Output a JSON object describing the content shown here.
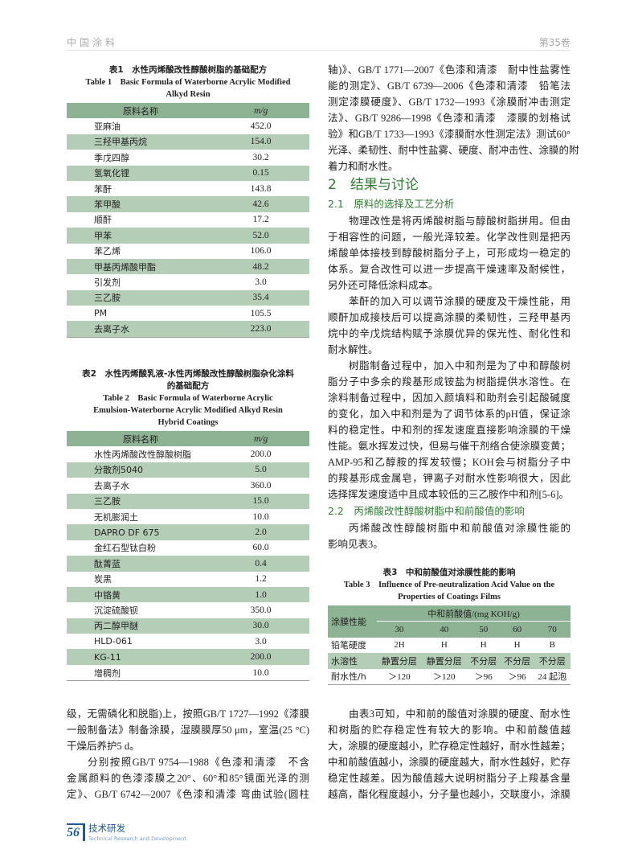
{
  "header": {
    "journal": "中国涂料",
    "volume": "第35卷"
  },
  "table1": {
    "caption_cn": "表1　水性丙烯酸改性醇酸树脂的基础配方",
    "caption_en": [
      "Table 1　Basic Formula of Waterborne Acrylic Modified",
      "Alkyd Resin"
    ],
    "headers": [
      "原料名称",
      "m/g"
    ],
    "rows": [
      [
        "亚麻油",
        "452.0"
      ],
      [
        "三羟甲基丙烷",
        "154.0"
      ],
      [
        "季戊四醇",
        "30.2"
      ],
      [
        "氢氧化锂",
        "0.15"
      ],
      [
        "苯酐",
        "143.8"
      ],
      [
        "苯甲酸",
        "42.6"
      ],
      [
        "顺酐",
        "17.2"
      ],
      [
        "甲苯",
        "52.0"
      ],
      [
        "苯乙烯",
        "106.0"
      ],
      [
        "甲基丙烯酸甲酯",
        "48.2"
      ],
      [
        "引发剂",
        "3.0"
      ],
      [
        "三乙胺",
        "35.4"
      ],
      [
        "PM",
        "105.5"
      ],
      [
        "去离子水",
        "223.0"
      ]
    ]
  },
  "table2": {
    "caption_cn": [
      "表2　水性丙烯酸乳液-水性丙烯酸改性醇酸树脂杂化涂料",
      "的基础配方"
    ],
    "caption_en": [
      "Table 2　Basic Formula of Waterborne Acrylic",
      "Emulsion-Waterborne Acrylic Modified Alkyd Resin",
      "Hybrid Coatings"
    ],
    "headers": [
      "原料名称",
      "m/g"
    ],
    "rows": [
      [
        "水性丙烯酸改性醇酸树脂",
        "200.0"
      ],
      [
        "分散剂5040",
        "5.0"
      ],
      [
        "去离子水",
        "360.0"
      ],
      [
        "三乙胺",
        "15.0"
      ],
      [
        "无机膨润土",
        "10.0"
      ],
      [
        "DAPRO DF 675",
        "2.0"
      ],
      [
        "金红石型钛白粉",
        "60.0"
      ],
      [
        "酞菁蓝",
        "0.4"
      ],
      [
        "炭黑",
        "1.2"
      ],
      [
        "中铬黄",
        "1.0"
      ],
      [
        "沉淀硫酸钡",
        "350.0"
      ],
      [
        "丙二醇甲醚",
        "30.0"
      ],
      [
        "HLD-061",
        "3.0"
      ],
      [
        "KG-11",
        "200.0"
      ],
      [
        "增稠剂",
        "10.0"
      ]
    ]
  },
  "left_text": [
    {
      "indent": false,
      "lines": [
        "级，无需磷化和脱脂)上，按照GB/T 1727—1992《漆膜",
        "一般制备法》制备涂膜，湿膜膜厚50 μm，室温(25 °C)",
        "干燥后养护5 d。"
      ]
    },
    {
      "indent": true,
      "lines": [
        "分别按照GB/T 9754—1988《色漆和清漆　不含",
        "金属颜料的色漆漆膜之20°、60°和85°镜面光泽的测",
        "定》、GB/T 6742—2007《色漆和清漆 弯曲试验(圆柱"
      ],
      "cont": true
    }
  ],
  "right_text_1": {
    "indent": false,
    "lines": [
      "轴)》、GB/T 1771—2007《色漆和清漆　耐中性盐雾性",
      "能的测定》、GB/T 6739—2006《色漆和清漆　铅笔法",
      "测定漆膜硬度》、GB/T 1732—1993《涂膜耐冲击测定",
      "法》、GB/T 9286—1998《色漆和清漆　漆膜的划格试",
      "验》和GB/T 1733—1993《漆膜耐水性测定法》测试60°",
      "光泽、柔韧性、耐中性盐雾、硬度、耐冲击性、涂膜的附",
      "着力和耐水性。"
    ]
  },
  "section2": {
    "title": "2　结果与讨论"
  },
  "section2_1": {
    "title": "2.1　原料的选择及工艺分析",
    "paras": [
      {
        "lines": [
          "物理改性是将丙烯酸树脂与醇酸树脂拼用。但由",
          "于相容性的问题，一般光泽较差。化学改性则是把丙",
          "烯酸单体接枝到醇酸树脂分子上，可形成均一稳定的",
          "体系。复合改性可以进一步提高干燥速率及耐候性，",
          "另外还可降低涂料成本。"
        ]
      },
      {
        "lines": [
          "苯酐的加入可以调节涂膜的硬度及干燥性能，用",
          "顺酐加成接枝后可以提高涂膜的柔韧性，三羟甲基丙",
          "烷中的辛戊烷结构赋予涂膜优异的保光性、耐化性和",
          "耐水解性。"
        ]
      },
      {
        "lines": [
          "树脂制备过程中，加入中和剂是为了中和醇酸树",
          "脂分子中多余的羧基形成铵盐为树脂提供水溶性。在",
          "涂料制备过程中，因加入颜填料和助剂会引起酸碱度",
          "的变化，加入中和剂是为了调节体系的pH值，保证涂",
          "料的稳定性。中和剂的挥发速度直接影响涂膜的干燥",
          "性能。氨水挥发过快，但易与催干剂络合使涂膜变黄；",
          "AMP-95和乙醇胺的挥发较慢；KOH会与树脂分子中",
          "的羧基形成金属皂，钾离子对耐水性影响很大，因此",
          "选择挥发速度适中且成本较低的三乙胺作中和剂[5-6]。"
        ]
      }
    ]
  },
  "section2_2": {
    "title": "2.2　丙烯酸改性醇酸树脂中和前酸值的影响",
    "paras": [
      {
        "lines": [
          "丙烯酸改性醇酸树脂中和前酸值对涂膜性能的",
          "影响见表3。"
        ]
      }
    ]
  },
  "table3": {
    "caption_cn": "表3　中和前酸值对涂膜性能的影响",
    "caption_en": [
      "Table 3　Influence of Pre-neutralization Acid Value on the",
      "Properties of Coatings Films"
    ],
    "row_header": "涂膜性能",
    "group_header": "中和前酸值/(mg KOH/g)",
    "columns": [
      "30",
      "40",
      "50",
      "60",
      "70"
    ],
    "rows": [
      [
        "铅笔硬度",
        "2H",
        "H",
        "H",
        "H",
        "B"
      ],
      [
        "水溶性",
        "静置分层",
        "静置分层",
        "不分层",
        "不分层",
        "不分层"
      ],
      [
        "耐水性/h",
        "＞120",
        "＞120",
        "＞96",
        "＞96",
        "24 起泡"
      ]
    ]
  },
  "right_text_2": {
    "indent": true,
    "lines": [
      "由表3可知，中和前的酸值对涂膜的硬度、耐水性",
      "和树脂的贮存稳定性有较大的影响。中和前酸值越",
      "大，涂膜的硬度越小，贮存稳定性越好，耐水性越差；",
      "中和前酸值越小，涂膜的硬度越大，耐水性越好，贮存",
      "稳定性越差。因为酸值越大说明树脂分子上羧基含量",
      "越高，酯化程度越小，分子量也越小，交联度小，涂膜"
    ],
    "cont": true
  },
  "footer": {
    "page": "56",
    "section_cn": "技术研发",
    "section_en": "Technical Research and Development"
  },
  "colors": {
    "heading": "#2e7d32",
    "table_header": "#8db394",
    "table_alt": "#b4cdb7",
    "footer": "#1d5a9a"
  }
}
